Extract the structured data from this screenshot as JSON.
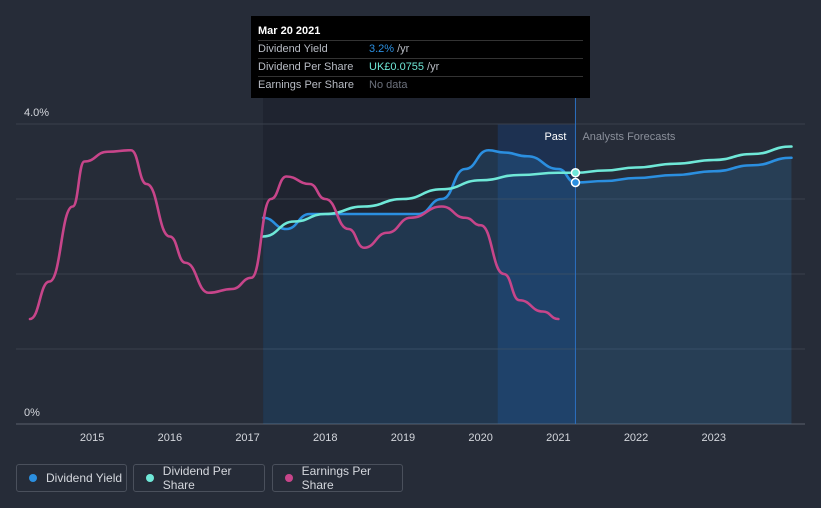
{
  "colors": {
    "background": "#262c38",
    "dividend_yield": "#2b8fe0",
    "dividend_per_share": "#6fe8d8",
    "earnings_per_share": "#c7458a",
    "past_region": "#1f2430",
    "forecast_highlight": "#1b3d6e"
  },
  "tooltip": {
    "date": "Mar 20 2021",
    "rows": [
      {
        "label": "Dividend Yield",
        "value": "3.2%",
        "unit": "/yr",
        "color": "#2b8fe0"
      },
      {
        "label": "Dividend Per Share",
        "value": "UK£0.0755",
        "unit": "/yr",
        "color": "#6fe8d8"
      },
      {
        "label": "Earnings Per Share",
        "value": "No data",
        "unit": "",
        "color": "#6c717c"
      }
    ]
  },
  "legend": [
    {
      "label": "Dividend Yield",
      "color": "#2b8fe0"
    },
    {
      "label": "Dividend Per Share",
      "color": "#6fe8d8"
    },
    {
      "label": "Earnings Per Share",
      "color": "#c7458a"
    }
  ],
  "chart_data": {
    "type": "line",
    "title": "",
    "xlabel": "",
    "ylabel": "",
    "y_tick_labels": [
      "4.0%",
      "0%"
    ],
    "ylim": [
      0,
      4.0
    ],
    "xlim": [
      2014.2,
      2024.0
    ],
    "x_tick_labels": [
      "2015",
      "2016",
      "2017",
      "2018",
      "2019",
      "2020",
      "2021",
      "2022",
      "2023"
    ],
    "x_ticks": [
      2015,
      2016,
      2017,
      2018,
      2019,
      2020,
      2021,
      2022,
      2023
    ],
    "past_label": "Past",
    "forecast_label": "Analysts Forecasts",
    "split_x": 2021.22,
    "past_region_start": 2017.2,
    "highlight_start": 2020.22,
    "grid": true,
    "series": [
      {
        "name": "Dividend Yield",
        "color": "#2b8fe0",
        "area": true,
        "points": [
          [
            2017.2,
            2.75
          ],
          [
            2017.5,
            2.6
          ],
          [
            2017.8,
            2.8
          ],
          [
            2018.5,
            2.8
          ],
          [
            2019.2,
            2.8
          ],
          [
            2019.5,
            3.0
          ],
          [
            2019.8,
            3.4
          ],
          [
            2020.1,
            3.65
          ],
          [
            2020.3,
            3.62
          ],
          [
            2020.6,
            3.57
          ],
          [
            2021.0,
            3.4
          ],
          [
            2021.22,
            3.22
          ],
          [
            2021.6,
            3.24
          ],
          [
            2022.0,
            3.28
          ],
          [
            2022.5,
            3.32
          ],
          [
            2023.0,
            3.37
          ],
          [
            2023.5,
            3.45
          ],
          [
            2024.0,
            3.55
          ]
        ]
      },
      {
        "name": "Dividend Per Share",
        "color": "#6fe8d8",
        "area": false,
        "points": [
          [
            2017.2,
            2.5
          ],
          [
            2017.6,
            2.7
          ],
          [
            2018.0,
            2.8
          ],
          [
            2018.5,
            2.9
          ],
          [
            2019.0,
            3.0
          ],
          [
            2019.5,
            3.13
          ],
          [
            2020.0,
            3.25
          ],
          [
            2020.5,
            3.32
          ],
          [
            2021.0,
            3.35
          ],
          [
            2021.22,
            3.35
          ],
          [
            2021.6,
            3.38
          ],
          [
            2022.0,
            3.42
          ],
          [
            2022.5,
            3.47
          ],
          [
            2023.0,
            3.52
          ],
          [
            2023.5,
            3.6
          ],
          [
            2024.0,
            3.7
          ]
        ]
      },
      {
        "name": "Earnings Per Share",
        "color": "#c7458a",
        "area": false,
        "points": [
          [
            2014.2,
            1.4
          ],
          [
            2014.45,
            1.9
          ],
          [
            2014.75,
            2.9
          ],
          [
            2014.9,
            3.5
          ],
          [
            2015.2,
            3.63
          ],
          [
            2015.5,
            3.65
          ],
          [
            2015.7,
            3.2
          ],
          [
            2016.0,
            2.5
          ],
          [
            2016.2,
            2.15
          ],
          [
            2016.5,
            1.75
          ],
          [
            2016.8,
            1.8
          ],
          [
            2017.05,
            1.95
          ],
          [
            2017.3,
            3.0
          ],
          [
            2017.5,
            3.3
          ],
          [
            2017.8,
            3.2
          ],
          [
            2018.0,
            3.0
          ],
          [
            2018.3,
            2.6
          ],
          [
            2018.5,
            2.35
          ],
          [
            2018.8,
            2.55
          ],
          [
            2019.1,
            2.75
          ],
          [
            2019.5,
            2.9
          ],
          [
            2019.8,
            2.75
          ],
          [
            2020.0,
            2.65
          ],
          [
            2020.3,
            2.0
          ],
          [
            2020.5,
            1.65
          ],
          [
            2020.8,
            1.5
          ],
          [
            2021.0,
            1.4
          ]
        ]
      }
    ]
  }
}
